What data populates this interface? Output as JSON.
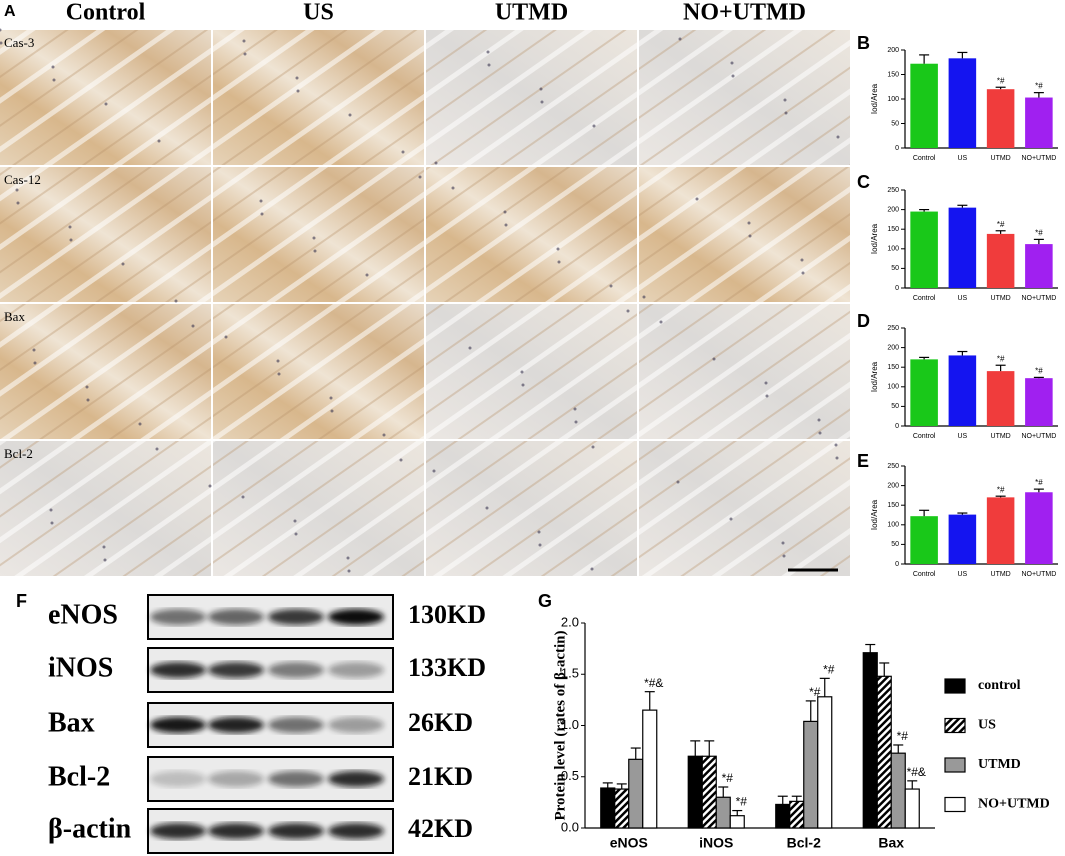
{
  "figure": {
    "panel_labels": [
      "A",
      "B",
      "C",
      "D",
      "E",
      "F",
      "G"
    ],
    "micrographs": {
      "columns": [
        "Control",
        "US",
        "UTMD",
        "NO+UTMD"
      ],
      "rows": [
        "Cas-3",
        "Cas-12",
        "Bax",
        "Bcl-2"
      ]
    },
    "western_blot": {
      "proteins": [
        "eNOS",
        "iNOS",
        "Bax",
        "Bcl-2",
        "β-actin"
      ],
      "sizes": [
        "130KD",
        "133KD",
        "26KD",
        "21KD",
        "42KD"
      ]
    }
  },
  "chart_data": [
    {
      "type": "bar",
      "ylabel": "Iod/Area",
      "categories": [
        "Control",
        "US",
        "UTMD",
        "NO+UTMD"
      ],
      "values": [
        172,
        183,
        120,
        103
      ],
      "errors": [
        18,
        12,
        4,
        10
      ],
      "annotations": [
        null,
        null,
        "*#",
        "*#"
      ],
      "colors": [
        "#19c819",
        "#1414f0",
        "#f03c3c",
        "#a020f0"
      ],
      "ylim": [
        0,
        200
      ],
      "yticks": [
        0,
        50,
        100,
        150,
        200
      ]
    },
    {
      "type": "bar",
      "ylabel": "Iod/Area",
      "categories": [
        "Control",
        "US",
        "UTMD",
        "NO+UTMD"
      ],
      "values": [
        195,
        205,
        138,
        112
      ],
      "errors": [
        5,
        6,
        8,
        12
      ],
      "annotations": [
        null,
        null,
        "*#",
        "*#"
      ],
      "colors": [
        "#19c819",
        "#1414f0",
        "#f03c3c",
        "#a020f0"
      ],
      "ylim": [
        0,
        250
      ],
      "yticks": [
        0,
        50,
        100,
        150,
        200,
        250
      ]
    },
    {
      "type": "bar",
      "ylabel": "Iod/Area",
      "categories": [
        "Control",
        "US",
        "UTMD",
        "NO+UTMD"
      ],
      "values": [
        170,
        180,
        140,
        122
      ],
      "errors": [
        5,
        10,
        15,
        2
      ],
      "annotations": [
        null,
        null,
        "*#",
        "*#"
      ],
      "colors": [
        "#19c819",
        "#1414f0",
        "#f03c3c",
        "#a020f0"
      ],
      "ylim": [
        0,
        250
      ],
      "yticks": [
        0,
        50,
        100,
        150,
        200,
        250
      ]
    },
    {
      "type": "bar",
      "ylabel": "Iod/Area",
      "categories": [
        "Control",
        "US",
        "UTMD",
        "NO+UTMD"
      ],
      "values": [
        122,
        126,
        170,
        183
      ],
      "errors": [
        15,
        4,
        3,
        8
      ],
      "annotations": [
        null,
        null,
        "*#",
        "*#"
      ],
      "colors": [
        "#19c819",
        "#1414f0",
        "#f03c3c",
        "#a020f0"
      ],
      "ylim": [
        0,
        250
      ],
      "yticks": [
        0,
        50,
        100,
        150,
        200,
        250
      ]
    },
    {
      "type": "grouped_bar",
      "ylabel": "Protein level (rates of β-actin)",
      "categories": [
        "eNOS",
        "iNOS",
        "Bcl-2",
        "Bax"
      ],
      "series": [
        {
          "name": "control",
          "color": "#000000",
          "pattern": "solid",
          "values": [
            0.39,
            0.7,
            0.23,
            1.71
          ],
          "errors": [
            0.05,
            0.15,
            0.08,
            0.08
          ],
          "annotations": [
            null,
            null,
            null,
            null
          ]
        },
        {
          "name": "US",
          "color": "#000000",
          "pattern": "hatch",
          "values": [
            0.38,
            0.7,
            0.26,
            1.48
          ],
          "errors": [
            0.05,
            0.15,
            0.05,
            0.13
          ],
          "annotations": [
            null,
            null,
            null,
            null
          ]
        },
        {
          "name": "UTMD",
          "color": "#999999",
          "pattern": "solid",
          "values": [
            0.67,
            0.3,
            1.04,
            0.73
          ],
          "errors": [
            0.11,
            0.1,
            0.2,
            0.08
          ],
          "annotations": [
            null,
            "*#",
            "*#",
            "*#"
          ]
        },
        {
          "name": "NO+UTMD",
          "color": "#ffffff",
          "pattern": "solid",
          "values": [
            1.15,
            0.12,
            1.28,
            0.38
          ],
          "errors": [
            0.18,
            0.05,
            0.18,
            0.08
          ],
          "annotations": [
            "*#&",
            "*#",
            "*#",
            "*#&"
          ]
        }
      ],
      "ylim": [
        0,
        2
      ],
      "yticks": [
        {
          "value": 0,
          "label": "0.0"
        },
        {
          "value": 0.5,
          "label": "0.5"
        },
        {
          "value": 1,
          "label": "1.0"
        },
        {
          "value": 1.5,
          "label": "1.5"
        },
        {
          "value": 2,
          "label": "2.0"
        }
      ],
      "legend": "right"
    }
  ]
}
